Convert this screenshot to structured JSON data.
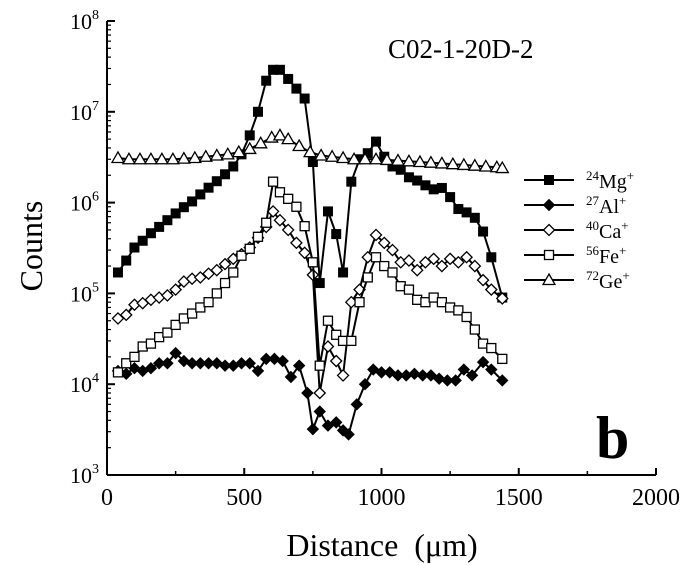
{
  "chart_data": {
    "type": "line",
    "title": "C02-1-20D-2",
    "panel_label": "b",
    "xlabel": "Distance  (μm)",
    "ylabel": "Counts",
    "xlim": [
      0,
      2000
    ],
    "ylim": [
      1000,
      100000000
    ],
    "y_scale": "log",
    "x_ticks": [
      "0",
      "500",
      "1000",
      "1500",
      "2000"
    ],
    "y_ticks": [
      {
        "base": "10",
        "exp": "3",
        "value": 1000
      },
      {
        "base": "10",
        "exp": "4",
        "value": 10000
      },
      {
        "base": "10",
        "exp": "5",
        "value": 100000
      },
      {
        "base": "10",
        "exp": "6",
        "value": 1000000
      },
      {
        "base": "10",
        "exp": "7",
        "value": 10000000
      },
      {
        "base": "10",
        "exp": "8",
        "value": 100000000
      }
    ],
    "legend_position": "right",
    "grid": false,
    "series": [
      {
        "name": "24Mg+",
        "mass": "24",
        "element": "Mg",
        "charge": "+",
        "marker": "filled-square",
        "points": [
          [
            40,
            170000
          ],
          [
            70,
            230000
          ],
          [
            100,
            320000
          ],
          [
            130,
            380000
          ],
          [
            160,
            460000
          ],
          [
            190,
            540000
          ],
          [
            220,
            640000
          ],
          [
            250,
            760000
          ],
          [
            280,
            890000
          ],
          [
            310,
            1030000
          ],
          [
            340,
            1230000
          ],
          [
            370,
            1460000
          ],
          [
            400,
            1720000
          ],
          [
            430,
            2050000
          ],
          [
            460,
            2500000
          ],
          [
            490,
            3400000
          ],
          [
            520,
            5500000
          ],
          [
            550,
            10000000
          ],
          [
            580,
            22000000
          ],
          [
            605,
            29000000
          ],
          [
            630,
            29000000
          ],
          [
            660,
            23000000
          ],
          [
            690,
            18000000
          ],
          [
            720,
            14000000
          ],
          [
            750,
            2800000
          ],
          [
            775,
            130000
          ],
          [
            805,
            800000
          ],
          [
            835,
            450000
          ],
          [
            860,
            170000
          ],
          [
            890,
            1700000
          ],
          [
            920,
            3000000
          ],
          [
            950,
            3500000
          ],
          [
            980,
            4700000
          ],
          [
            1010,
            3200000
          ],
          [
            1040,
            2500000
          ],
          [
            1070,
            2300000
          ],
          [
            1100,
            1900000
          ],
          [
            1130,
            1750000
          ],
          [
            1160,
            1550000
          ],
          [
            1190,
            1400000
          ],
          [
            1220,
            1450000
          ],
          [
            1250,
            1150000
          ],
          [
            1280,
            850000
          ],
          [
            1310,
            780000
          ],
          [
            1340,
            680000
          ],
          [
            1370,
            480000
          ],
          [
            1400,
            250000
          ],
          [
            1440,
            90000
          ]
        ]
      },
      {
        "name": "27Al+",
        "mass": "27",
        "element": "Al",
        "charge": "+",
        "marker": "filled-diamond",
        "points": [
          [
            40,
            14000
          ],
          [
            70,
            13000
          ],
          [
            100,
            15000
          ],
          [
            130,
            14000
          ],
          [
            160,
            15000
          ],
          [
            190,
            17000
          ],
          [
            220,
            17000
          ],
          [
            250,
            22000
          ],
          [
            280,
            18000
          ],
          [
            310,
            17000
          ],
          [
            340,
            17000
          ],
          [
            370,
            17000
          ],
          [
            400,
            17000
          ],
          [
            430,
            16000
          ],
          [
            460,
            16000
          ],
          [
            490,
            17000
          ],
          [
            520,
            17000
          ],
          [
            550,
            14000
          ],
          [
            580,
            19000
          ],
          [
            610,
            19000
          ],
          [
            640,
            18000
          ],
          [
            670,
            12000
          ],
          [
            700,
            16000
          ],
          [
            730,
            8000
          ],
          [
            750,
            3200
          ],
          [
            775,
            5000
          ],
          [
            805,
            3500
          ],
          [
            835,
            3800
          ],
          [
            860,
            3100
          ],
          [
            880,
            2800
          ],
          [
            910,
            6000
          ],
          [
            940,
            10000
          ],
          [
            970,
            14500
          ],
          [
            1000,
            13500
          ],
          [
            1030,
            13500
          ],
          [
            1060,
            12500
          ],
          [
            1090,
            12500
          ],
          [
            1120,
            13000
          ],
          [
            1150,
            12500
          ],
          [
            1180,
            12500
          ],
          [
            1210,
            11500
          ],
          [
            1240,
            11000
          ],
          [
            1270,
            11000
          ],
          [
            1300,
            14500
          ],
          [
            1330,
            12500
          ],
          [
            1370,
            17500
          ],
          [
            1400,
            14500
          ],
          [
            1440,
            11000
          ]
        ]
      },
      {
        "name": "40Ca+",
        "mass": "40",
        "element": "Ca",
        "charge": "+",
        "marker": "open-diamond",
        "points": [
          [
            40,
            53000
          ],
          [
            70,
            58000
          ],
          [
            100,
            75000
          ],
          [
            130,
            78000
          ],
          [
            160,
            85000
          ],
          [
            190,
            90000
          ],
          [
            220,
            95000
          ],
          [
            250,
            110000
          ],
          [
            280,
            135000
          ],
          [
            310,
            145000
          ],
          [
            340,
            150000
          ],
          [
            370,
            165000
          ],
          [
            400,
            180000
          ],
          [
            430,
            210000
          ],
          [
            460,
            240000
          ],
          [
            490,
            270000
          ],
          [
            520,
            320000
          ],
          [
            550,
            410000
          ],
          [
            580,
            540000
          ],
          [
            605,
            800000
          ],
          [
            630,
            640000
          ],
          [
            660,
            500000
          ],
          [
            690,
            360000
          ],
          [
            720,
            280000
          ],
          [
            750,
            160000
          ],
          [
            775,
            8000
          ],
          [
            805,
            26000
          ],
          [
            835,
            18000
          ],
          [
            860,
            12500
          ],
          [
            890,
            80000
          ],
          [
            920,
            110000
          ],
          [
            950,
            250000
          ],
          [
            980,
            440000
          ],
          [
            1010,
            360000
          ],
          [
            1040,
            300000
          ],
          [
            1070,
            220000
          ],
          [
            1100,
            230000
          ],
          [
            1130,
            180000
          ],
          [
            1160,
            220000
          ],
          [
            1190,
            240000
          ],
          [
            1220,
            200000
          ],
          [
            1250,
            240000
          ],
          [
            1280,
            220000
          ],
          [
            1310,
            250000
          ],
          [
            1340,
            200000
          ],
          [
            1370,
            140000
          ],
          [
            1400,
            110000
          ],
          [
            1440,
            88000
          ]
        ]
      },
      {
        "name": "56Fe+",
        "mass": "56",
        "element": "Fe",
        "charge": "+",
        "marker": "open-square",
        "points": [
          [
            40,
            13500
          ],
          [
            70,
            17000
          ],
          [
            100,
            20000
          ],
          [
            130,
            26000
          ],
          [
            160,
            28000
          ],
          [
            190,
            33000
          ],
          [
            220,
            37000
          ],
          [
            250,
            45000
          ],
          [
            280,
            53000
          ],
          [
            310,
            60000
          ],
          [
            340,
            70000
          ],
          [
            370,
            80000
          ],
          [
            400,
            100000
          ],
          [
            430,
            130000
          ],
          [
            460,
            170000
          ],
          [
            490,
            260000
          ],
          [
            520,
            310000
          ],
          [
            550,
            420000
          ],
          [
            580,
            600000
          ],
          [
            605,
            1700000
          ],
          [
            630,
            1300000
          ],
          [
            660,
            1100000
          ],
          [
            690,
            900000
          ],
          [
            720,
            550000
          ],
          [
            750,
            220000
          ],
          [
            775,
            16000
          ],
          [
            805,
            50000
          ],
          [
            835,
            35000
          ],
          [
            860,
            30000
          ],
          [
            890,
            30000
          ],
          [
            920,
            80000
          ],
          [
            950,
            150000
          ],
          [
            980,
            250000
          ],
          [
            1010,
            200000
          ],
          [
            1040,
            170000
          ],
          [
            1070,
            120000
          ],
          [
            1100,
            110000
          ],
          [
            1130,
            85000
          ],
          [
            1160,
            80000
          ],
          [
            1190,
            90000
          ],
          [
            1220,
            80000
          ],
          [
            1250,
            70000
          ],
          [
            1280,
            65000
          ],
          [
            1310,
            55000
          ],
          [
            1340,
            40000
          ],
          [
            1370,
            28000
          ],
          [
            1400,
            25000
          ],
          [
            1440,
            19000
          ]
        ]
      },
      {
        "name": "72Ge+",
        "mass": "72",
        "element": "Ge",
        "charge": "+",
        "marker": "open-triangle",
        "points": [
          [
            40,
            3100000
          ],
          [
            80,
            3000000
          ],
          [
            120,
            3000000
          ],
          [
            160,
            3000000
          ],
          [
            200,
            3000000
          ],
          [
            240,
            3000000
          ],
          [
            280,
            3050000
          ],
          [
            320,
            3100000
          ],
          [
            360,
            3200000
          ],
          [
            400,
            3300000
          ],
          [
            440,
            3400000
          ],
          [
            480,
            3600000
          ],
          [
            520,
            3900000
          ],
          [
            560,
            4500000
          ],
          [
            600,
            5200000
          ],
          [
            630,
            5500000
          ],
          [
            660,
            5000000
          ],
          [
            700,
            4200000
          ],
          [
            740,
            3600000
          ],
          [
            780,
            3300000
          ],
          [
            820,
            3200000
          ],
          [
            860,
            3100000
          ],
          [
            900,
            3000000
          ],
          [
            940,
            3000000
          ],
          [
            980,
            3000000
          ],
          [
            1020,
            2950000
          ],
          [
            1060,
            2900000
          ],
          [
            1100,
            2850000
          ],
          [
            1140,
            2800000
          ],
          [
            1180,
            2750000
          ],
          [
            1220,
            2700000
          ],
          [
            1260,
            2650000
          ],
          [
            1300,
            2600000
          ],
          [
            1340,
            2550000
          ],
          [
            1380,
            2500000
          ],
          [
            1420,
            2450000
          ],
          [
            1440,
            2400000
          ]
        ]
      }
    ]
  }
}
